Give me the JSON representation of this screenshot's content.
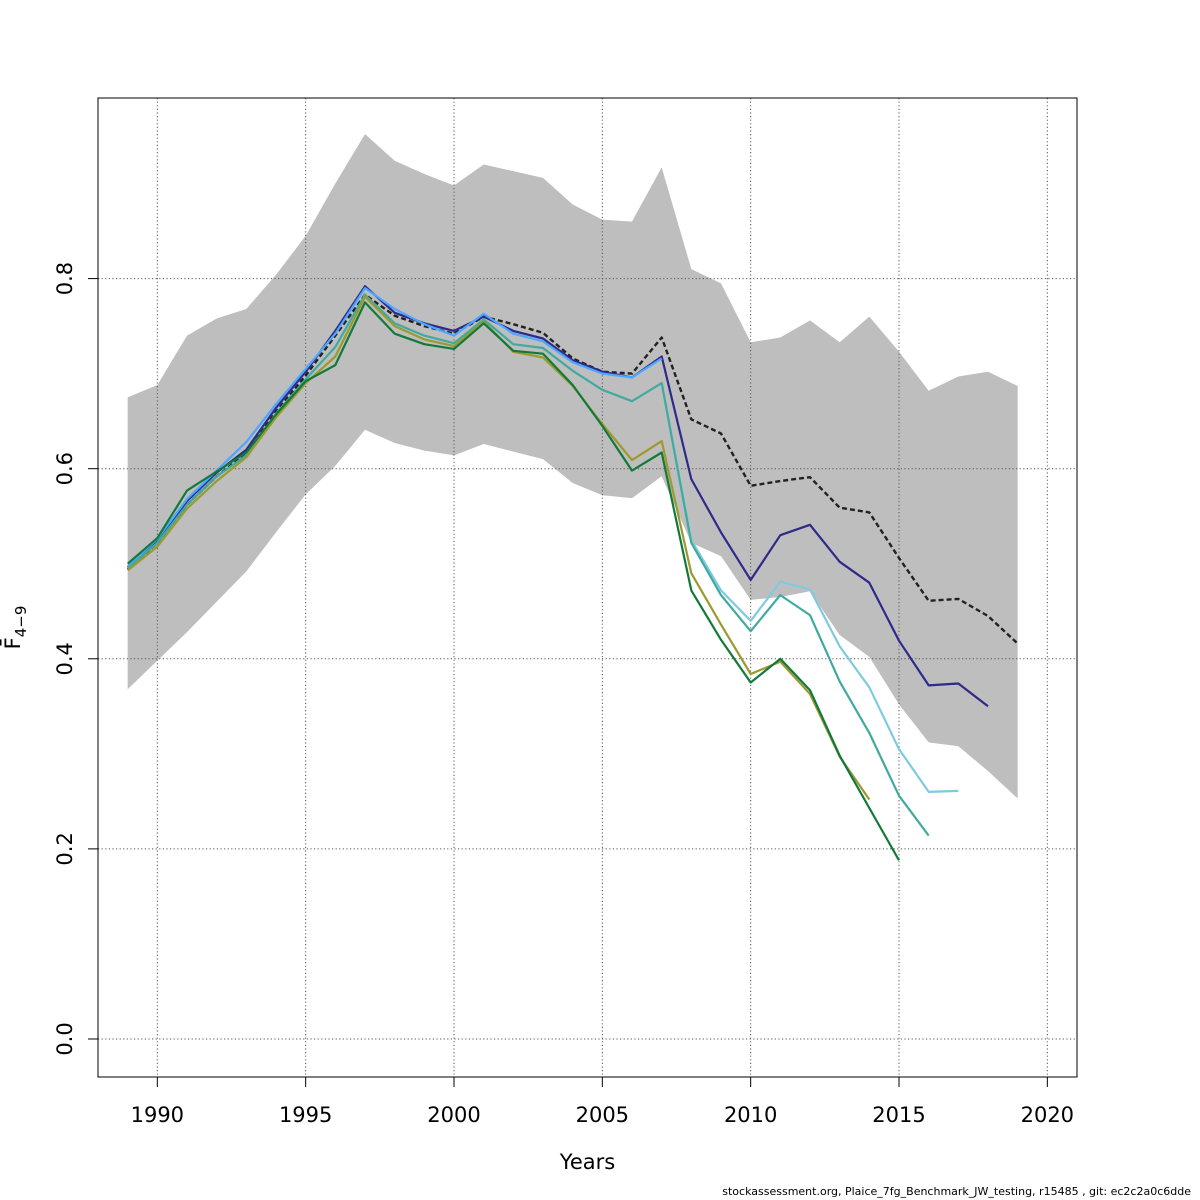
{
  "chart_data": {
    "type": "line",
    "xlabel": "Years",
    "ylabel": "F̄",
    "ylabel_subscript": "4−9",
    "xlim": [
      1988,
      2021
    ],
    "ylim": [
      -0.04,
      0.99
    ],
    "x_ticks": [
      1990,
      1995,
      2000,
      2005,
      2010,
      2015,
      2020
    ],
    "y_ticks": [
      0.0,
      0.2,
      0.4,
      0.6,
      0.8
    ],
    "x_tick_labels": [
      "1990",
      "1995",
      "2000",
      "2005",
      "2010",
      "2015",
      "2020"
    ],
    "y_tick_labels": [
      "0.0",
      "0.2",
      "0.4",
      "0.6",
      "0.8"
    ],
    "grid": true,
    "confidence_band": {
      "color": "#bebebe",
      "x": [
        1989,
        1990,
        1991,
        1992,
        1993,
        1994,
        1995,
        1996,
        1997,
        1998,
        1999,
        2000,
        2001,
        2002,
        2003,
        2004,
        2005,
        2006,
        2007,
        2008,
        2009,
        2010,
        2011,
        2012,
        2013,
        2014,
        2015,
        2016,
        2017,
        2018,
        2019
      ],
      "upper": [
        0.675,
        0.688,
        0.74,
        0.758,
        0.768,
        0.804,
        0.845,
        0.9,
        0.952,
        0.924,
        0.91,
        0.898,
        0.92,
        0.913,
        0.906,
        0.878,
        0.862,
        0.86,
        0.917,
        0.81,
        0.795,
        0.733,
        0.738,
        0.756,
        0.733,
        0.76,
        0.723,
        0.682,
        0.697,
        0.702,
        0.687
      ],
      "lower": [
        0.368,
        0.398,
        0.428,
        0.46,
        0.492,
        0.533,
        0.573,
        0.603,
        0.641,
        0.627,
        0.619,
        0.614,
        0.626,
        0.618,
        0.61,
        0.585,
        0.572,
        0.569,
        0.592,
        0.522,
        0.508,
        0.462,
        0.465,
        0.471,
        0.425,
        0.402,
        0.352,
        0.312,
        0.308,
        0.282,
        0.253
      ]
    },
    "series": [
      {
        "color": "#222222",
        "dashed": true,
        "x": [
          1989,
          1990,
          1991,
          1992,
          1993,
          1994,
          1995,
          1996,
          1997,
          1998,
          1999,
          2000,
          2001,
          2002,
          2003,
          2004,
          2005,
          2006,
          2007,
          2008,
          2009,
          2010,
          2011,
          2012,
          2013,
          2014,
          2015,
          2016,
          2017,
          2018,
          2019
        ],
        "values": [
          0.494,
          0.522,
          0.562,
          0.592,
          0.616,
          0.66,
          0.698,
          0.74,
          0.783,
          0.761,
          0.75,
          0.742,
          0.76,
          0.752,
          0.743,
          0.716,
          0.702,
          0.7,
          0.738,
          0.652,
          0.637,
          0.582,
          0.587,
          0.591,
          0.559,
          0.554,
          0.506,
          0.461,
          0.463,
          0.445,
          0.416
        ]
      },
      {
        "color": "#2d2a8a",
        "dashed": false,
        "x": [
          1989,
          1990,
          1991,
          1992,
          1993,
          1994,
          1995,
          1996,
          1997,
          1998,
          1999,
          2000,
          2001,
          2002,
          2003,
          2004,
          2005,
          2006,
          2007,
          2008,
          2009,
          2010,
          2011,
          2012,
          2013,
          2014,
          2015,
          2016,
          2017,
          2018
        ],
        "values": [
          0.496,
          0.524,
          0.566,
          0.596,
          0.62,
          0.664,
          0.702,
          0.745,
          0.792,
          0.764,
          0.753,
          0.745,
          0.76,
          0.745,
          0.737,
          0.714,
          0.702,
          0.696,
          0.718,
          0.589,
          0.533,
          0.483,
          0.53,
          0.541,
          0.502,
          0.48,
          0.419,
          0.372,
          0.374,
          0.35
        ]
      },
      {
        "color": "#4da6ff",
        "dashed": false,
        "x": [
          1989,
          1990,
          1991,
          1992,
          1993,
          1994,
          1995,
          1996,
          1997,
          1998,
          1999,
          2000,
          2001,
          2002,
          2003,
          2004,
          2005,
          2006,
          2007
        ],
        "values": [
          0.497,
          0.526,
          0.568,
          0.598,
          0.628,
          0.668,
          0.705,
          0.742,
          0.79,
          0.768,
          0.752,
          0.74,
          0.763,
          0.742,
          0.734,
          0.712,
          0.7,
          0.696,
          0.716
        ]
      },
      {
        "color": "#7ecbe0",
        "dashed": false,
        "x": [
          2007,
          2008,
          2009,
          2010,
          2011,
          2012,
          2013,
          2014,
          2015,
          2016,
          2017
        ],
        "values": [
          0.69,
          0.525,
          0.472,
          0.44,
          0.481,
          0.473,
          0.413,
          0.37,
          0.305,
          0.26,
          0.261
        ]
      },
      {
        "color": "#40aaa0",
        "dashed": false,
        "x": [
          1989,
          1990,
          1991,
          1992,
          1993,
          1994,
          1995,
          1996,
          1997,
          1998,
          1999,
          2000,
          2001,
          2002,
          2003,
          2004,
          2005,
          2006,
          2007,
          2008,
          2009,
          2010,
          2011,
          2012,
          2013,
          2014,
          2015,
          2016
        ],
        "values": [
          0.495,
          0.522,
          0.562,
          0.592,
          0.614,
          0.658,
          0.694,
          0.728,
          0.783,
          0.753,
          0.74,
          0.732,
          0.757,
          0.731,
          0.727,
          0.703,
          0.683,
          0.671,
          0.69,
          0.522,
          0.467,
          0.429,
          0.467,
          0.446,
          0.376,
          0.322,
          0.256,
          0.214
        ]
      },
      {
        "color": "#9c9a2e",
        "dashed": false,
        "x": [
          1989,
          1990,
          1991,
          1992,
          1993,
          1994,
          1995,
          1996,
          1997,
          1998,
          1999,
          2000,
          2001,
          2002,
          2003,
          2004,
          2005,
          2006,
          2007,
          2008,
          2009,
          2010,
          2011,
          2012,
          2013,
          2014
        ],
        "values": [
          0.493,
          0.518,
          0.558,
          0.587,
          0.612,
          0.654,
          0.69,
          0.718,
          0.781,
          0.75,
          0.736,
          0.729,
          0.755,
          0.723,
          0.717,
          0.687,
          0.647,
          0.609,
          0.629,
          0.49,
          0.436,
          0.384,
          0.397,
          0.363,
          0.297,
          0.252
        ]
      },
      {
        "color": "#117a3a",
        "dashed": false,
        "x": [
          1989,
          1990,
          1991,
          1992,
          1993,
          1994,
          1995,
          1996,
          1997,
          1998,
          1999,
          2000,
          2001,
          2002,
          2003,
          2004,
          2005,
          2006,
          2007,
          2008,
          2009,
          2010,
          2011,
          2012,
          2013,
          2014,
          2015
        ],
        "values": [
          0.5,
          0.527,
          0.577,
          0.597,
          0.617,
          0.657,
          0.692,
          0.709,
          0.775,
          0.742,
          0.731,
          0.726,
          0.753,
          0.724,
          0.721,
          0.688,
          0.645,
          0.598,
          0.617,
          0.472,
          0.42,
          0.375,
          0.4,
          0.367,
          0.298,
          0.243,
          0.188
        ]
      }
    ]
  },
  "footer": {
    "text": "stockassessment.org, Plaice_7fg_Benchmark_JW_testing, r15485 , git: ec2c2a0c6dde"
  }
}
